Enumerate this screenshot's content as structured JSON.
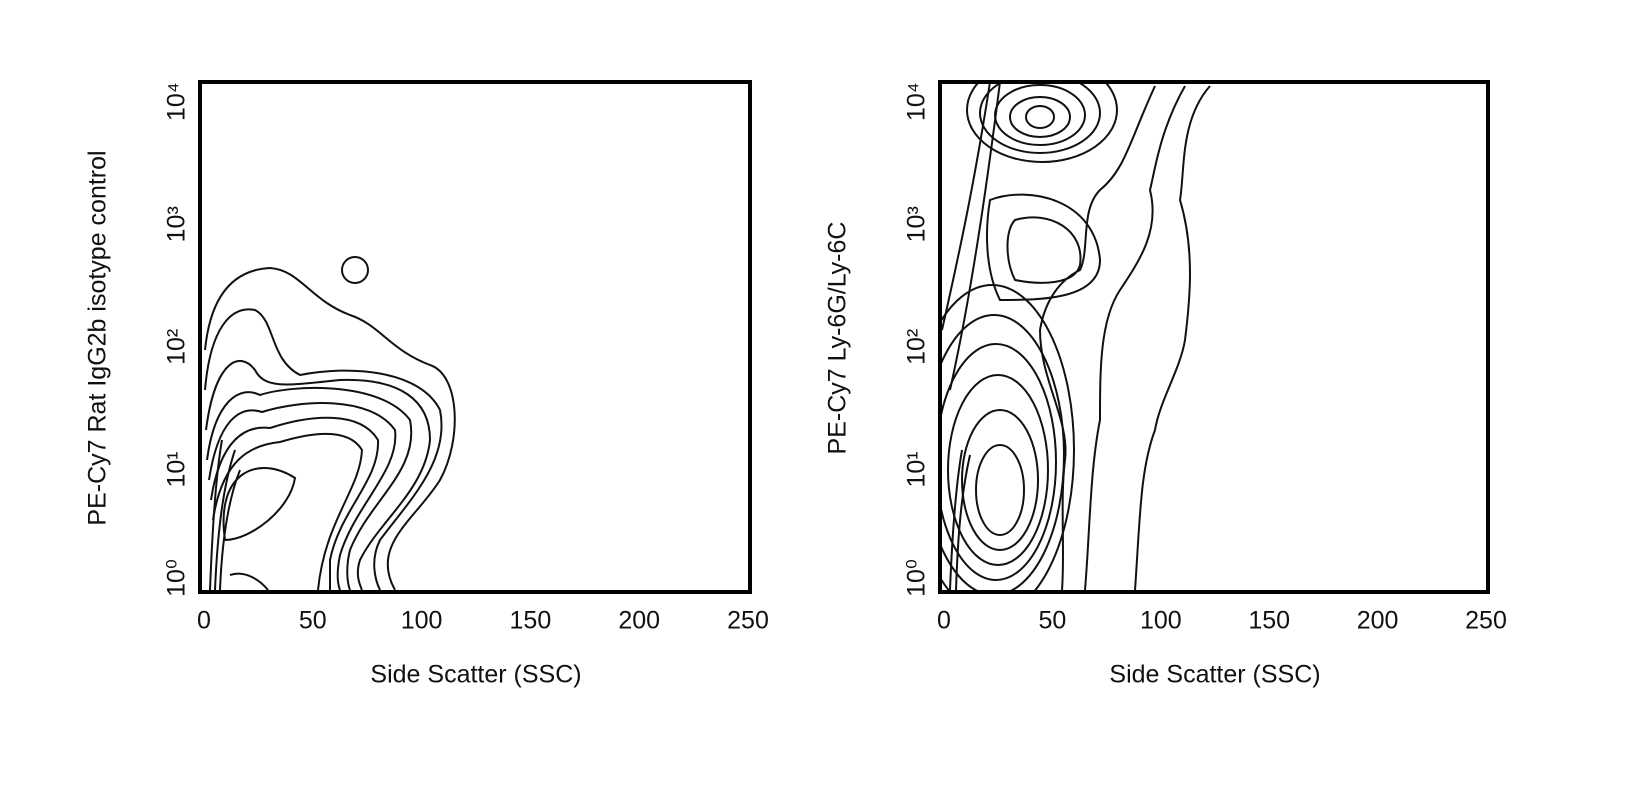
{
  "chart_data": [
    {
      "type": "contour",
      "x_label": "Side Scatter (SSC)",
      "y_label": "PE-Cy7 Rat IgG2b isotype control",
      "xlim": [
        0,
        250
      ],
      "xticks": [
        0,
        50,
        100,
        150,
        200,
        250
      ],
      "ylim": [
        1,
        12000
      ],
      "log_y": true,
      "yticks": [
        {
          "value": 1,
          "label": "10⁰"
        },
        {
          "value": 10,
          "label": "10¹"
        },
        {
          "value": 100,
          "label": "10²"
        },
        {
          "value": 1000,
          "label": "10³"
        },
        {
          "value": 10000,
          "label": "10⁴"
        }
      ],
      "color": "#000000"
    },
    {
      "type": "contour",
      "x_label": "Side Scatter (SSC)",
      "y_label": "PE-Cy7 Ly-6G/Ly-6C",
      "xlim": [
        0,
        250
      ],
      "xticks": [
        0,
        50,
        100,
        150,
        200,
        250
      ],
      "ylim": [
        1,
        12000
      ],
      "log_y": true,
      "yticks": [
        {
          "value": 1,
          "label": "10⁰"
        },
        {
          "value": 10,
          "label": "10¹"
        },
        {
          "value": 100,
          "label": "10²"
        },
        {
          "value": 1000,
          "label": "10³"
        },
        {
          "value": 10000,
          "label": "10⁴"
        }
      ],
      "color": "#000000"
    }
  ]
}
